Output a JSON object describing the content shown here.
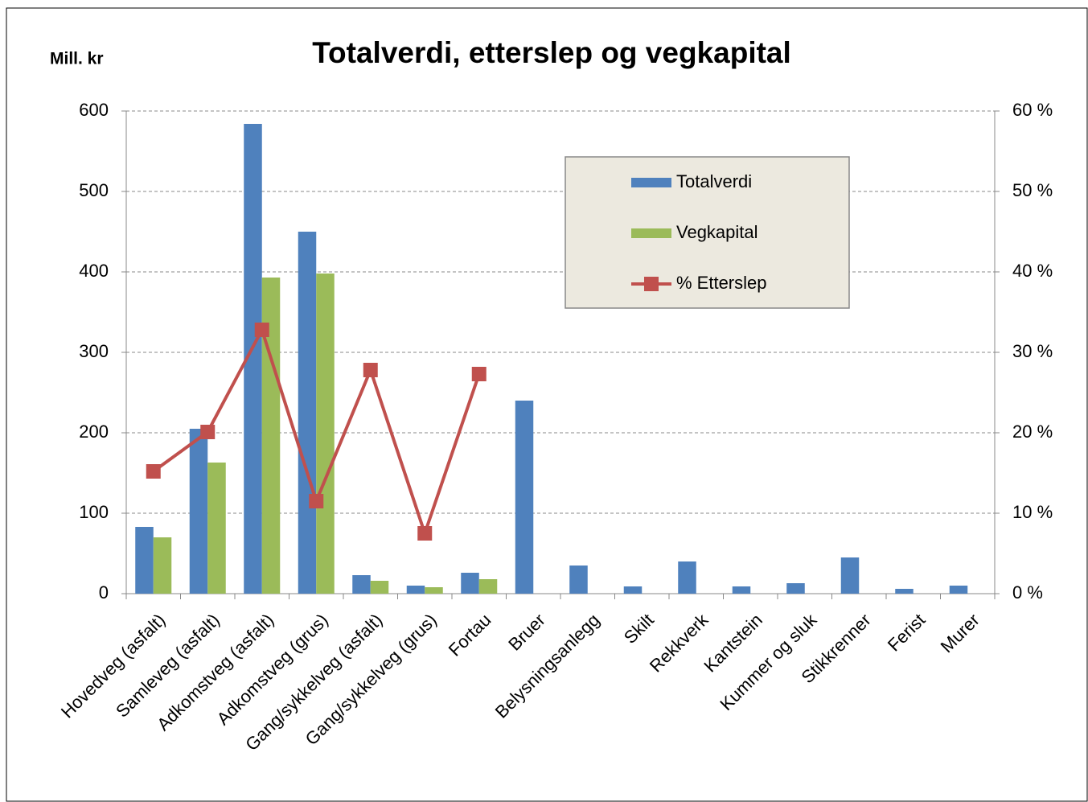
{
  "chart_data": {
    "type": "bar",
    "title": "Totalverdi, etterslep og vegkapital",
    "y_label": "Mill. kr",
    "categories": [
      "Hovedveg (asfalt)",
      "Samleveg (asfalt)",
      "Adkomstveg (asfalt)",
      "Adkomstveg (grus)",
      "Gang/sykkelveg (asfalt)",
      "Gang/sykkelveg (grus)",
      "Fortau",
      "Bruer",
      "Belysningsanlegg",
      "Skilt",
      "Rekkverk",
      "Kantstein",
      "Kummer og sluk",
      "Stikkrenner",
      "Ferist",
      "Murer"
    ],
    "series": [
      {
        "name": "Totalverdi",
        "color": "#4f81bd",
        "type": "bar",
        "values": [
          83,
          205,
          584,
          450,
          23,
          10,
          26,
          240,
          35,
          9,
          40,
          9,
          13,
          45,
          6,
          10
        ]
      },
      {
        "name": "Vegkapital",
        "color": "#9bbb59",
        "type": "bar",
        "values": [
          70,
          163,
          393,
          398,
          16,
          8,
          18,
          null,
          null,
          null,
          null,
          null,
          null,
          null,
          null,
          null
        ]
      },
      {
        "name": "% Etterslep",
        "color": "#c0504d",
        "type": "line",
        "axis": "y2",
        "values": [
          15.2,
          20.1,
          32.8,
          11.5,
          27.8,
          7.5,
          27.3,
          null,
          null,
          null,
          null,
          null,
          null,
          null,
          null,
          null
        ]
      }
    ],
    "ylim": [
      0,
      600
    ],
    "yticks": [
      0,
      100,
      200,
      300,
      400,
      500,
      600
    ],
    "y2lim": [
      0,
      60
    ],
    "y2ticks": [
      {
        "value": 0,
        "label": "0 %"
      },
      {
        "value": 10,
        "label": "10 %"
      },
      {
        "value": 20,
        "label": "20 %"
      },
      {
        "value": 30,
        "label": "30 %"
      },
      {
        "value": 40,
        "label": "40 %"
      },
      {
        "value": 50,
        "label": "50 %"
      },
      {
        "value": 60,
        "label": "60 %"
      }
    ],
    "grid": true,
    "legend": "upper right"
  }
}
